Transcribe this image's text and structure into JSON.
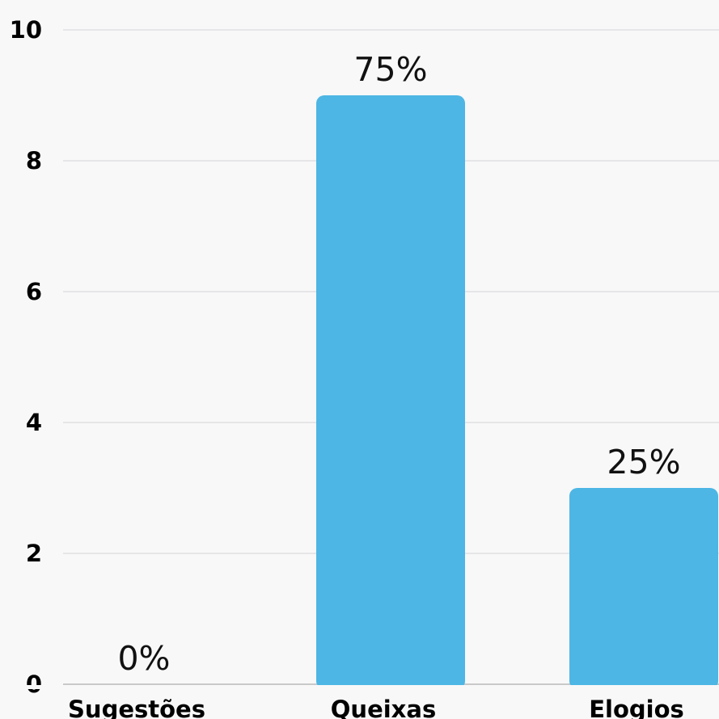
{
  "chart_data": {
    "type": "bar",
    "categories": [
      "Sugestões",
      "Queixas",
      "Elogios"
    ],
    "values": [
      0,
      9,
      3
    ],
    "data_labels": [
      "0%",
      "75%",
      "25%"
    ],
    "ylim": [
      0,
      10
    ],
    "y_ticks": [
      "0",
      "2",
      "4",
      "6",
      "8",
      "10"
    ],
    "grid": true,
    "bar_color": "#4db6e4",
    "title": "",
    "xlabel": "",
    "ylabel": ""
  }
}
